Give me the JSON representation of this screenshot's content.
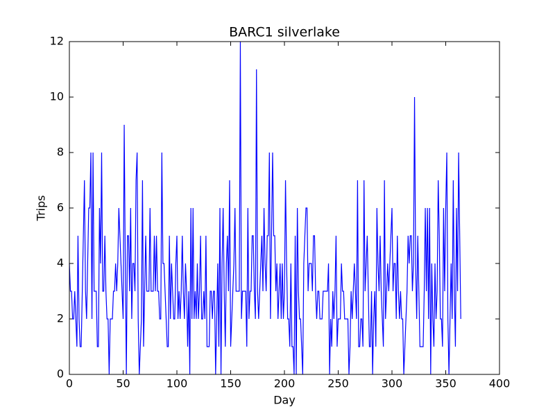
{
  "chart_data": {
    "type": "line",
    "title": "BARC1 silverlake",
    "x_label": "Day",
    "y_label": "Trips",
    "color": "#0000ff",
    "xlim": [
      0,
      400
    ],
    "xticks": [
      0,
      50,
      100,
      150,
      200,
      250,
      300,
      350,
      400
    ],
    "ylim": [
      0,
      12
    ],
    "yticks": [
      0,
      2,
      4,
      6,
      8,
      10,
      12
    ],
    "x": [
      0,
      1,
      2,
      3,
      4,
      5,
      6,
      7,
      8,
      9,
      10,
      11,
      12,
      13,
      14,
      15,
      16,
      17,
      18,
      19,
      20,
      21,
      22,
      23,
      24,
      25,
      26,
      27,
      28,
      29,
      30,
      31,
      32,
      33,
      34,
      35,
      36,
      37,
      38,
      39,
      40,
      41,
      42,
      43,
      44,
      45,
      46,
      47,
      48,
      49,
      50,
      51,
      52,
      53,
      54,
      55,
      56,
      57,
      58,
      59,
      60,
      61,
      62,
      63,
      64,
      65,
      66,
      67,
      68,
      69,
      70,
      71,
      72,
      73,
      74,
      75,
      76,
      77,
      78,
      79,
      80,
      81,
      82,
      83,
      84,
      85,
      86,
      87,
      88,
      89,
      90,
      91,
      92,
      93,
      94,
      95,
      96,
      97,
      98,
      99,
      100,
      101,
      102,
      103,
      104,
      105,
      106,
      107,
      108,
      109,
      110,
      111,
      112,
      113,
      114,
      115,
      116,
      117,
      118,
      119,
      120,
      121,
      122,
      123,
      124,
      125,
      126,
      127,
      128,
      129,
      130,
      131,
      132,
      133,
      134,
      135,
      136,
      137,
      138,
      139,
      140,
      141,
      142,
      143,
      144,
      145,
      146,
      147,
      148,
      149,
      150,
      151,
      152,
      153,
      154,
      155,
      156,
      157,
      158,
      159,
      160,
      161,
      162,
      163,
      164,
      165,
      166,
      167,
      168,
      169,
      170,
      171,
      172,
      173,
      174,
      175,
      176,
      177,
      178,
      179,
      180,
      181,
      182,
      183,
      184,
      185,
      186,
      187,
      188,
      189,
      190,
      191,
      192,
      193,
      194,
      195,
      196,
      197,
      198,
      199,
      200,
      201,
      202,
      203,
      204,
      205,
      206,
      207,
      208,
      209,
      210,
      211,
      212,
      213,
      214,
      215,
      216,
      217,
      218,
      219,
      220,
      221,
      222,
      223,
      224,
      225,
      226,
      227,
      228,
      229,
      230,
      231,
      232,
      233,
      234,
      235,
      236,
      237,
      238,
      239,
      240,
      241,
      242,
      243,
      244,
      245,
      246,
      247,
      248,
      249,
      250,
      251,
      252,
      253,
      254,
      255,
      256,
      257,
      258,
      259,
      260,
      261,
      262,
      263,
      264,
      265,
      266,
      267,
      268,
      269,
      270,
      271,
      272,
      273,
      274,
      275,
      276,
      277,
      278,
      279,
      280,
      281,
      282,
      283,
      284,
      285,
      286,
      287,
      288,
      289,
      290,
      291,
      292,
      293,
      294,
      295,
      296,
      297,
      298,
      299,
      300,
      301,
      302,
      303,
      304,
      305,
      306,
      307,
      308,
      309,
      310,
      311,
      312,
      313,
      314,
      315,
      316,
      317,
      318,
      319,
      320,
      321,
      322,
      323,
      324,
      325,
      326,
      327,
      328,
      329,
      330,
      331,
      332,
      333,
      334,
      335,
      336,
      337,
      338,
      339,
      340,
      341,
      342,
      343,
      344,
      345,
      346,
      347,
      348,
      349,
      350,
      351,
      352,
      353,
      354,
      355,
      356,
      357,
      358,
      359,
      360,
      361,
      362,
      363,
      364
    ],
    "values": [
      4,
      3,
      3,
      2,
      2,
      3,
      2,
      1,
      5,
      2,
      1,
      1,
      3,
      5,
      7,
      3,
      2,
      4,
      6,
      6,
      8,
      2,
      8,
      3,
      3,
      3,
      1,
      1,
      6,
      4,
      8,
      3,
      3,
      5,
      3,
      2,
      2,
      0,
      2,
      2,
      2,
      3,
      3,
      4,
      3,
      4,
      6,
      5,
      4,
      3,
      2,
      9,
      4,
      0,
      5,
      5,
      3,
      6,
      2,
      4,
      4,
      3,
      7,
      8,
      2,
      0,
      1,
      2,
      7,
      1,
      3,
      5,
      3,
      3,
      3,
      6,
      3,
      3,
      3,
      5,
      3,
      5,
      3,
      3,
      2,
      2,
      8,
      4,
      4,
      3,
      2,
      1,
      1,
      5,
      2,
      4,
      3,
      2,
      2,
      4,
      5,
      2,
      3,
      2,
      3,
      5,
      3,
      2,
      4,
      3,
      1,
      3,
      0,
      6,
      2,
      6,
      2,
      3,
      2,
      4,
      2,
      3,
      5,
      2,
      2,
      3,
      2,
      5,
      1,
      1,
      1,
      3,
      3,
      2,
      3,
      3,
      0,
      2,
      4,
      1,
      6,
      0,
      4,
      6,
      3,
      1,
      4,
      5,
      3,
      7,
      1,
      2,
      3,
      4,
      6,
      3,
      3,
      3,
      3,
      12,
      2,
      3,
      3,
      3,
      3,
      1,
      6,
      2,
      3,
      3,
      5,
      5,
      3,
      2,
      11,
      3,
      2,
      3,
      4,
      5,
      3,
      6,
      4,
      3,
      5,
      5,
      8,
      2,
      5,
      8,
      5,
      5,
      3,
      4,
      2,
      3,
      4,
      2,
      4,
      2,
      3,
      7,
      4,
      2,
      2,
      1,
      4,
      1,
      1,
      0,
      5,
      0,
      6,
      3,
      2,
      2,
      1,
      0,
      4,
      5,
      6,
      6,
      3,
      4,
      4,
      4,
      3,
      5,
      5,
      3,
      2,
      3,
      3,
      2,
      2,
      2,
      3,
      3,
      3,
      3,
      3,
      4,
      0,
      2,
      1,
      3,
      2,
      3,
      5,
      1,
      2,
      2,
      2,
      4,
      3,
      3,
      2,
      2,
      2,
      2,
      0,
      1,
      3,
      2,
      3,
      4,
      3,
      2,
      7,
      1,
      1,
      2,
      2,
      1,
      7,
      3,
      4,
      5,
      3,
      1,
      1,
      3,
      0,
      2,
      3,
      1,
      6,
      4,
      3,
      5,
      3,
      2,
      1,
      7,
      2,
      3,
      4,
      3,
      4,
      5,
      6,
      3,
      4,
      4,
      2,
      5,
      3,
      2,
      3,
      2,
      2,
      0,
      1,
      2,
      3,
      5,
      4,
      5,
      5,
      3,
      4,
      10,
      4,
      2,
      5,
      3,
      1,
      1,
      1,
      1,
      3,
      6,
      3,
      6,
      2,
      6,
      0,
      4,
      2,
      1,
      4,
      2,
      3,
      7,
      5,
      2,
      2,
      1,
      6,
      3,
      6,
      8,
      2,
      0,
      2,
      4,
      2,
      7,
      3,
      1,
      6,
      3,
      8,
      5,
      2
    ]
  }
}
